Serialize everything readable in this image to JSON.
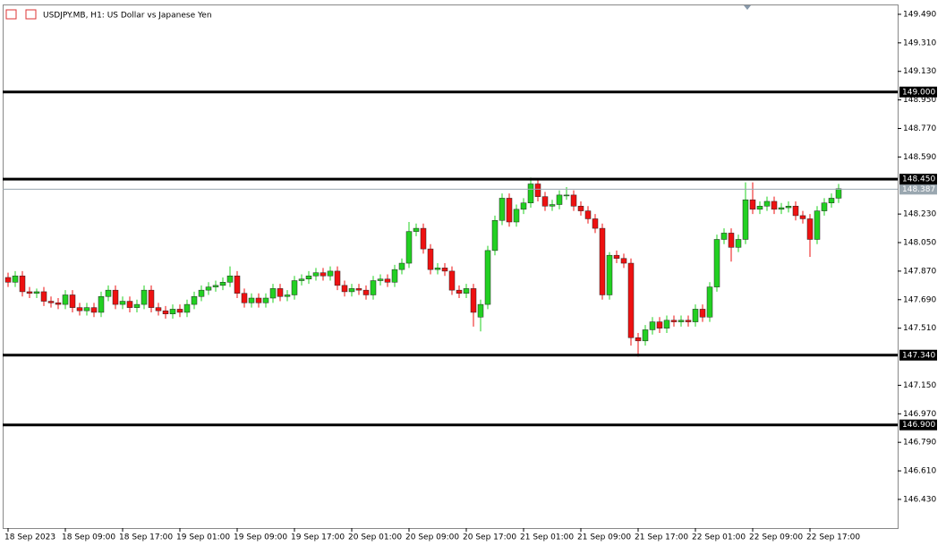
{
  "chart_data": {
    "type": "candlestick",
    "title": "USDJPY.MB, H1:  US Dollar vs Japanese Yen",
    "categories": [
      "18 Sep 2023",
      null,
      null,
      null,
      null,
      null,
      null,
      null,
      "18 Sep 09:00",
      null,
      null,
      null,
      null,
      null,
      null,
      null,
      "18 Sep 17:00",
      null,
      null,
      null,
      null,
      null,
      null,
      null,
      "19 Sep 01:00",
      null,
      null,
      null,
      null,
      null,
      null,
      null,
      "19 Sep 09:00",
      null,
      null,
      null,
      null,
      null,
      null,
      null,
      "19 Sep 17:00",
      null,
      null,
      null,
      null,
      null,
      null,
      null,
      "20 Sep 01:00",
      null,
      null,
      null,
      null,
      null,
      null,
      null,
      "20 Sep 09:00",
      null,
      null,
      null,
      null,
      null,
      null,
      null,
      "20 Sep 17:00",
      null,
      null,
      null,
      null,
      null,
      null,
      null,
      "21 Sep 01:00",
      null,
      null,
      null,
      null,
      null,
      null,
      null,
      "21 Sep 09:00",
      null,
      null,
      null,
      null,
      null,
      null,
      null,
      "21 Sep 17:00",
      null,
      null,
      null,
      null,
      null,
      null,
      null,
      "22 Sep 01:00",
      null,
      null,
      null,
      null,
      null,
      null,
      null,
      "22 Sep 09:00",
      null,
      null,
      null,
      null,
      null,
      null,
      null,
      "22 Sep 17:00",
      null,
      null,
      null,
      null
    ],
    "open": [
      147.83,
      147.8,
      147.84,
      147.74,
      147.73,
      147.74,
      147.68,
      147.67,
      147.66,
      147.72,
      147.64,
      147.62,
      147.64,
      147.61,
      147.71,
      147.75,
      147.66,
      147.68,
      147.64,
      147.66,
      147.75,
      147.64,
      147.62,
      147.6,
      147.63,
      147.61,
      147.66,
      147.71,
      147.75,
      147.77,
      147.78,
      147.8,
      147.84,
      147.73,
      147.67,
      147.7,
      147.67,
      147.7,
      147.76,
      147.71,
      147.72,
      147.81,
      147.82,
      147.84,
      147.86,
      147.84,
      147.87,
      147.78,
      147.74,
      147.76,
      147.75,
      147.72,
      147.81,
      147.82,
      147.8,
      147.88,
      147.92,
      148.12,
      148.14,
      148.01,
      147.88,
      147.89,
      147.87,
      147.75,
      147.73,
      147.76,
      147.58,
      147.66,
      148.0,
      148.19,
      148.33,
      148.18,
      148.26,
      148.3,
      148.42,
      148.34,
      148.28,
      148.29,
      148.35,
      148.35,
      148.28,
      148.25,
      148.2,
      148.14,
      147.72,
      147.97,
      147.95,
      147.92,
      147.45,
      147.43,
      147.5,
      147.55,
      147.51,
      147.56,
      147.55,
      147.56,
      147.55,
      147.63,
      147.58,
      147.77,
      148.07,
      148.11,
      148.02,
      148.07,
      148.32,
      148.26,
      148.28,
      148.31,
      148.26,
      148.27,
      148.28,
      148.22,
      148.2,
      148.07,
      148.25,
      148.3,
      148.33
    ],
    "high": [
      147.86,
      147.87,
      147.87,
      147.77,
      147.76,
      147.77,
      147.71,
      147.7,
      147.75,
      147.75,
      147.67,
      147.67,
      147.67,
      147.74,
      147.78,
      147.78,
      147.71,
      147.71,
      147.69,
      147.78,
      147.78,
      147.67,
      147.65,
      147.66,
      147.66,
      147.69,
      147.74,
      147.78,
      147.8,
      147.81,
      147.83,
      147.9,
      147.87,
      147.76,
      147.73,
      147.73,
      147.73,
      147.79,
      147.79,
      147.75,
      147.84,
      147.85,
      147.87,
      147.89,
      147.89,
      147.9,
      147.9,
      147.81,
      147.79,
      147.79,
      147.78,
      147.84,
      147.85,
      147.85,
      147.91,
      147.95,
      148.18,
      148.17,
      148.17,
      148.04,
      147.92,
      147.92,
      147.9,
      147.78,
      147.79,
      147.79,
      147.69,
      148.03,
      148.22,
      148.36,
      148.36,
      148.29,
      148.33,
      148.46,
      148.45,
      148.37,
      148.32,
      148.38,
      148.4,
      148.38,
      148.31,
      148.28,
      148.23,
      148.17,
      147.99,
      148.0,
      147.98,
      147.95,
      147.48,
      147.53,
      147.58,
      147.58,
      147.59,
      147.59,
      147.59,
      147.59,
      147.66,
      147.66,
      147.8,
      148.1,
      148.14,
      148.14,
      148.1,
      148.43,
      148.43,
      148.31,
      148.34,
      148.34,
      148.3,
      148.31,
      148.31,
      148.25,
      148.23,
      148.28,
      148.33,
      148.36,
      148.42
    ],
    "low": [
      147.77,
      147.77,
      147.71,
      147.7,
      147.7,
      147.65,
      147.64,
      147.63,
      147.63,
      147.61,
      147.59,
      147.59,
      147.58,
      147.58,
      147.68,
      147.63,
      147.63,
      147.61,
      147.61,
      147.63,
      147.61,
      147.59,
      147.57,
      147.57,
      147.58,
      147.58,
      147.63,
      147.68,
      147.72,
      147.74,
      147.75,
      147.77,
      147.7,
      147.64,
      147.64,
      147.64,
      147.64,
      147.67,
      147.68,
      147.68,
      147.69,
      147.78,
      147.79,
      147.81,
      147.81,
      147.81,
      147.75,
      147.71,
      147.71,
      147.72,
      147.69,
      147.69,
      147.78,
      147.77,
      147.77,
      147.85,
      147.89,
      148.09,
      147.98,
      147.85,
      147.85,
      147.84,
      147.72,
      147.7,
      147.7,
      147.52,
      147.49,
      147.63,
      147.97,
      148.16,
      148.15,
      148.15,
      148.23,
      148.27,
      148.31,
      148.25,
      148.25,
      148.26,
      148.32,
      148.25,
      148.22,
      148.17,
      148.11,
      147.69,
      147.69,
      147.92,
      147.89,
      147.4,
      147.33,
      147.4,
      147.47,
      147.48,
      147.48,
      147.52,
      147.52,
      147.52,
      147.52,
      147.55,
      147.55,
      147.74,
      148.04,
      147.93,
      147.99,
      148.04,
      148.23,
      148.23,
      148.25,
      148.23,
      148.23,
      148.24,
      148.19,
      148.17,
      147.96,
      148.04,
      148.22,
      148.27,
      148.3
    ],
    "close": [
      147.8,
      147.84,
      147.74,
      147.73,
      147.74,
      147.68,
      147.67,
      147.66,
      147.72,
      147.64,
      147.62,
      147.64,
      147.61,
      147.71,
      147.75,
      147.66,
      147.68,
      147.64,
      147.66,
      147.75,
      147.64,
      147.62,
      147.6,
      147.63,
      147.61,
      147.66,
      147.71,
      147.75,
      147.77,
      147.78,
      147.8,
      147.84,
      147.73,
      147.67,
      147.7,
      147.67,
      147.7,
      147.76,
      147.71,
      147.72,
      147.81,
      147.82,
      147.84,
      147.86,
      147.84,
      147.87,
      147.78,
      147.74,
      147.76,
      147.75,
      147.72,
      147.81,
      147.82,
      147.8,
      147.88,
      147.92,
      148.12,
      148.14,
      148.01,
      147.88,
      147.89,
      147.87,
      147.75,
      147.73,
      147.76,
      147.61,
      147.66,
      148.0,
      148.19,
      148.33,
      148.18,
      148.26,
      148.3,
      148.42,
      148.34,
      148.28,
      148.29,
      148.35,
      148.35,
      148.28,
      148.25,
      148.2,
      148.14,
      147.72,
      147.97,
      147.95,
      147.92,
      147.45,
      147.43,
      147.5,
      147.55,
      147.51,
      147.56,
      147.55,
      147.56,
      147.55,
      147.63,
      147.58,
      147.77,
      148.07,
      148.11,
      148.02,
      148.07,
      148.32,
      148.26,
      148.28,
      148.31,
      148.26,
      148.27,
      148.28,
      148.22,
      148.2,
      148.07,
      148.25,
      148.3,
      148.33,
      148.39
    ],
    "up_color": "#22d022",
    "down_color": "#ee1111",
    "ylim": [
      146.249,
      149.552
    ],
    "yticks": [
      {
        "value": 149.49,
        "label": "149.490"
      },
      {
        "value": 149.31,
        "label": "149.310"
      },
      {
        "value": 149.13,
        "label": "149.130"
      },
      {
        "value": 148.95,
        "label": "148.950"
      },
      {
        "value": 148.77,
        "label": "148.770"
      },
      {
        "value": 148.59,
        "label": "148.590"
      },
      {
        "value": 148.23,
        "label": "148.230"
      },
      {
        "value": 148.05,
        "label": "148.050"
      },
      {
        "value": 147.87,
        "label": "147.870"
      },
      {
        "value": 147.69,
        "label": "147.690"
      },
      {
        "value": 147.51,
        "label": "147.510"
      },
      {
        "value": 147.15,
        "label": "147.150"
      },
      {
        "value": 146.97,
        "label": "146.970"
      },
      {
        "value": 146.79,
        "label": "146.790"
      },
      {
        "value": 146.61,
        "label": "146.610"
      },
      {
        "value": 146.43,
        "label": "146.430"
      }
    ],
    "levels": [
      {
        "value": 149,
        "label": "149.000"
      },
      {
        "value": 148.45,
        "label": "148.450"
      },
      {
        "value": 147.34,
        "label": "147.340"
      },
      {
        "value": 146.9,
        "label": "146.900"
      }
    ],
    "current_price": {
      "value": 148.387,
      "label": "148.387"
    }
  }
}
